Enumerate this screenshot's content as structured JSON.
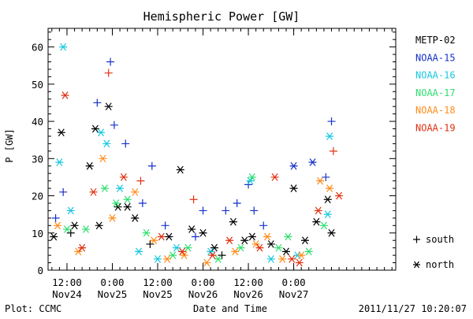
{
  "chart_data": {
    "type": "scatter",
    "title": "Hemispheric Power [GW]",
    "ylabel": "P [GW]",
    "xlabel": "Date and Time",
    "ylim": [
      0,
      65
    ],
    "y_ticks": [
      0,
      10,
      20,
      30,
      40,
      50,
      60
    ],
    "xlim": [
      "2011-11-24T07:00",
      "2011-11-28T03:00"
    ],
    "x_ticks": [
      {
        "time": "2011-11-24T12:00",
        "line1": "12:00",
        "line2": "Nov24"
      },
      {
        "time": "2011-11-25T00:00",
        "line1": "0:00",
        "line2": "Nov25"
      },
      {
        "time": "2011-11-25T12:00",
        "line1": "12:00",
        "line2": "Nov25"
      },
      {
        "time": "2011-11-26T00:00",
        "line1": "0:00",
        "line2": "Nov26"
      },
      {
        "time": "2011-11-26T12:00",
        "line1": "12:00",
        "line2": "Nov26"
      },
      {
        "time": "2011-11-27T00:00",
        "line1": "0:00",
        "line2": "Nov27"
      }
    ],
    "x_minor_ticks_every_hours": 2,
    "grid": false,
    "legend_position": "right",
    "series": [
      {
        "name": "METP-02",
        "color": "#000000",
        "points": [
          [
            "2011-11-24T08:30",
            9,
            "n"
          ],
          [
            "2011-11-24T10:30",
            37,
            "n"
          ],
          [
            "2011-11-24T14:00",
            12,
            "n"
          ],
          [
            "2011-11-24T18:00",
            28,
            "n"
          ],
          [
            "2011-11-24T19:30",
            38,
            "n"
          ],
          [
            "2011-11-24T20:30",
            12,
            "n"
          ],
          [
            "2011-11-24T23:00",
            44,
            "n"
          ],
          [
            "2011-11-25T01:30",
            17,
            "n"
          ],
          [
            "2011-11-25T04:00",
            17,
            "n"
          ],
          [
            "2011-11-25T06:00",
            14,
            "n"
          ],
          [
            "2011-11-25T15:00",
            9,
            "n"
          ],
          [
            "2011-11-25T18:00",
            27,
            "n"
          ],
          [
            "2011-11-25T21:00",
            11,
            "n"
          ],
          [
            "2011-11-26T00:00",
            10,
            "n"
          ],
          [
            "2011-11-26T03:00",
            6,
            "n"
          ],
          [
            "2011-11-26T08:00",
            13,
            "n"
          ],
          [
            "2011-11-26T11:00",
            8,
            "n"
          ],
          [
            "2011-11-26T13:00",
            9,
            "n"
          ],
          [
            "2011-11-26T18:00",
            7,
            "n"
          ],
          [
            "2011-11-26T22:00",
            5,
            "n"
          ],
          [
            "2011-11-27T00:00",
            22,
            "n"
          ],
          [
            "2011-11-27T03:00",
            8,
            "n"
          ],
          [
            "2011-11-27T06:00",
            13,
            "n"
          ],
          [
            "2011-11-27T09:00",
            19,
            "n"
          ],
          [
            "2011-11-27T10:00",
            10,
            "n"
          ],
          [
            "2011-11-24T13:00",
            10,
            "s"
          ],
          [
            "2011-11-25T10:00",
            7,
            "s"
          ],
          [
            "2011-11-26T05:00",
            4,
            "s"
          ]
        ]
      },
      {
        "name": "NOAA-15",
        "color": "#1530c8",
        "points": [
          [
            "2011-11-24T09:00",
            14,
            "s"
          ],
          [
            "2011-11-24T11:00",
            21,
            "s"
          ],
          [
            "2011-11-24T20:00",
            45,
            "s"
          ],
          [
            "2011-11-24T23:30",
            56,
            "s"
          ],
          [
            "2011-11-25T00:30",
            39,
            "s"
          ],
          [
            "2011-11-25T03:30",
            34,
            "s"
          ],
          [
            "2011-11-25T10:30",
            28,
            "s"
          ],
          [
            "2011-11-25T08:00",
            18,
            "s"
          ],
          [
            "2011-11-26T00:00",
            16,
            "s"
          ],
          [
            "2011-11-26T06:00",
            16,
            "s"
          ],
          [
            "2011-11-26T09:00",
            18,
            "s"
          ],
          [
            "2011-11-26T12:00",
            23,
            "s"
          ],
          [
            "2011-11-26T13:30",
            16,
            "s"
          ],
          [
            "2011-11-27T00:00",
            28,
            "n"
          ],
          [
            "2011-11-27T05:00",
            29,
            "n"
          ],
          [
            "2011-11-27T08:30",
            25,
            "s"
          ],
          [
            "2011-11-27T10:00",
            40,
            "s"
          ],
          [
            "2011-11-25T14:00",
            12,
            "s"
          ],
          [
            "2011-11-25T22:00",
            9,
            "s"
          ],
          [
            "2011-11-26T16:00",
            12,
            "s"
          ]
        ]
      },
      {
        "name": "NOAA-16",
        "color": "#18c8e0",
        "points": [
          [
            "2011-11-24T10:00",
            29,
            "n"
          ],
          [
            "2011-11-24T11:00",
            60,
            "n"
          ],
          [
            "2011-11-24T13:00",
            16,
            "n"
          ],
          [
            "2011-11-24T21:00",
            37,
            "n"
          ],
          [
            "2011-11-24T22:30",
            34,
            "n"
          ],
          [
            "2011-11-25T02:00",
            22,
            "n"
          ],
          [
            "2011-11-25T07:00",
            5,
            "n"
          ],
          [
            "2011-11-25T17:00",
            6,
            "n"
          ],
          [
            "2011-11-26T02:00",
            5,
            "n"
          ],
          [
            "2011-11-26T12:30",
            24,
            "n"
          ],
          [
            "2011-11-27T01:00",
            4,
            "n"
          ],
          [
            "2011-11-27T09:30",
            36,
            "n"
          ],
          [
            "2011-11-27T09:00",
            15,
            "n"
          ],
          [
            "2011-11-25T12:00",
            3,
            "n"
          ],
          [
            "2011-11-26T18:00",
            3,
            "n"
          ]
        ]
      },
      {
        "name": "NOAA-17",
        "color": "#30e070",
        "points": [
          [
            "2011-11-24T12:00",
            11,
            "n"
          ],
          [
            "2011-11-24T17:00",
            11,
            "n"
          ],
          [
            "2011-11-24T22:00",
            22,
            "n"
          ],
          [
            "2011-11-25T01:00",
            18,
            "n"
          ],
          [
            "2011-11-25T04:00",
            19,
            "n"
          ],
          [
            "2011-11-25T09:00",
            10,
            "n"
          ],
          [
            "2011-11-25T20:00",
            6,
            "n"
          ],
          [
            "2011-11-26T04:00",
            3,
            "n"
          ],
          [
            "2011-11-26T10:00",
            6,
            "n"
          ],
          [
            "2011-11-26T13:00",
            25,
            "n"
          ],
          [
            "2011-11-26T20:00",
            6,
            "n"
          ],
          [
            "2011-11-27T04:00",
            5,
            "n"
          ],
          [
            "2011-11-27T08:00",
            12,
            "n"
          ],
          [
            "2011-11-25T16:00",
            4,
            "n"
          ],
          [
            "2011-11-26T22:30",
            9,
            "n"
          ]
        ]
      },
      {
        "name": "NOAA-18",
        "color": "#ff8c1a",
        "points": [
          [
            "2011-11-24T09:30",
            12,
            "n"
          ],
          [
            "2011-11-24T15:00",
            5,
            "n"
          ],
          [
            "2011-11-24T21:30",
            30,
            "n"
          ],
          [
            "2011-11-25T00:00",
            14,
            "n"
          ],
          [
            "2011-11-25T06:00",
            21,
            "n"
          ],
          [
            "2011-11-25T11:00",
            8,
            "n"
          ],
          [
            "2011-11-25T19:00",
            4,
            "n"
          ],
          [
            "2011-11-26T01:00",
            2,
            "n"
          ],
          [
            "2011-11-26T08:30",
            5,
            "n"
          ],
          [
            "2011-11-26T14:00",
            7,
            "n"
          ],
          [
            "2011-11-26T21:00",
            3,
            "n"
          ],
          [
            "2011-11-27T02:00",
            4,
            "n"
          ],
          [
            "2011-11-27T07:00",
            24,
            "n"
          ],
          [
            "2011-11-27T09:30",
            22,
            "n"
          ],
          [
            "2011-11-25T14:30",
            3,
            "n"
          ],
          [
            "2011-11-26T17:00",
            9,
            "n"
          ]
        ]
      },
      {
        "name": "NOAA-19",
        "color": "#e03010",
        "points": [
          [
            "2011-11-24T11:30",
            47,
            "n"
          ],
          [
            "2011-11-24T16:00",
            6,
            "n"
          ],
          [
            "2011-11-24T19:00",
            21,
            "n"
          ],
          [
            "2011-11-24T23:00",
            53,
            "s"
          ],
          [
            "2011-11-25T03:00",
            25,
            "n"
          ],
          [
            "2011-11-25T07:30",
            24,
            "s"
          ],
          [
            "2011-11-25T13:00",
            9,
            "n"
          ],
          [
            "2011-11-25T21:30",
            19,
            "s"
          ],
          [
            "2011-11-26T02:30",
            4,
            "n"
          ],
          [
            "2011-11-26T07:00",
            8,
            "n"
          ],
          [
            "2011-11-26T15:00",
            6,
            "n"
          ],
          [
            "2011-11-26T19:00",
            25,
            "n"
          ],
          [
            "2011-11-27T01:30",
            2,
            "n"
          ],
          [
            "2011-11-27T06:30",
            16,
            "n"
          ],
          [
            "2011-11-27T10:30",
            32,
            "s"
          ],
          [
            "2011-11-27T12:00",
            20,
            "n"
          ],
          [
            "2011-11-25T18:30",
            5,
            "n"
          ],
          [
            "2011-11-26T23:30",
            3,
            "n"
          ]
        ]
      }
    ],
    "symbol_legend": [
      {
        "symbol": "+",
        "label": "south"
      },
      {
        "symbol": "*",
        "label": "north"
      }
    ]
  },
  "footer": {
    "left": "Plot: CCMC",
    "center": "Date and Time",
    "right": "2011/11/27 10:20:07"
  }
}
